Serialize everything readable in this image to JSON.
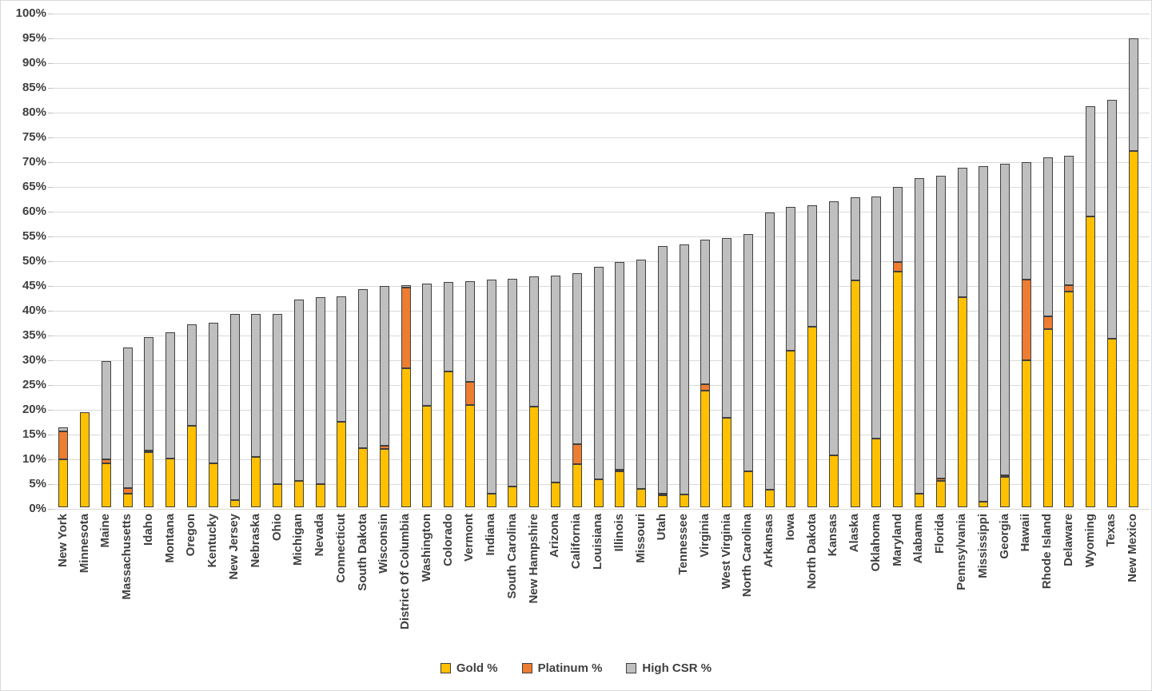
{
  "chart_data": {
    "type": "bar",
    "stacked": true,
    "title": "",
    "xlabel": "",
    "ylabel": "",
    "ylim": [
      0,
      100
    ],
    "ytick_step": 5,
    "yticks": [
      "0%",
      "5%",
      "10%",
      "15%",
      "20%",
      "25%",
      "30%",
      "35%",
      "40%",
      "45%",
      "50%",
      "55%",
      "60%",
      "65%",
      "70%",
      "75%",
      "80%",
      "85%",
      "90%",
      "95%",
      "100%"
    ],
    "grid": true,
    "legend_position": "bottom",
    "categories": [
      "New York",
      "Minnesota",
      "Maine",
      "Massachusetts",
      "Idaho",
      "Montana",
      "Oregon",
      "Kentucky",
      "New Jersey",
      "Nebraska",
      "Ohio",
      "Michigan",
      "Nevada",
      "Connecticut",
      "South Dakota",
      "Wisconsin",
      "District Of Columbia",
      "Washington",
      "Colorado",
      "Vermont",
      "Indiana",
      "South Carolina",
      "New Hampshire",
      "Arizona",
      "California",
      "Louisiana",
      "Illinois",
      "Missouri",
      "Utah",
      "Tennessee",
      "Virginia",
      "West Virginia",
      "North Carolina",
      "Arkansas",
      "Iowa",
      "North Dakota",
      "Kansas",
      "Alaska",
      "Oklahoma",
      "Maryland",
      "Alabama",
      "Florida",
      "Pennsylvania",
      "Mississippi",
      "Georgia",
      "Hawaii",
      "Rhode Island",
      "Delaware",
      "Wyoming",
      "Texas",
      "New Mexico"
    ],
    "series": [
      {
        "name": "Gold %",
        "color": "#FFC000",
        "values": [
          9.7,
          19.2,
          8.8,
          2.7,
          11.1,
          9.9,
          16.5,
          8.9,
          1.5,
          10.2,
          4.7,
          5.4,
          4.6,
          17.3,
          11.9,
          11.7,
          28.0,
          20.5,
          27.4,
          20.7,
          2.8,
          4.2,
          20.4,
          5.0,
          8.7,
          5.7,
          7.2,
          3.7,
          2.4,
          2.6,
          23.6,
          18.0,
          7.2,
          3.6,
          31.6,
          36.4,
          10.5,
          45.8,
          13.9,
          47.6,
          2.7,
          5.3,
          42.4,
          1.2,
          6.2,
          29.7,
          36.0,
          43.5,
          58.7,
          34.1,
          72.0
        ]
      },
      {
        "name": "Platinum %",
        "color": "#ED7D31",
        "values": [
          5.6,
          0,
          0.9,
          1.1,
          0.3,
          0,
          0,
          0,
          0,
          0,
          0,
          0,
          0,
          0,
          0,
          0.8,
          16.3,
          0,
          0,
          4.6,
          0,
          0,
          0,
          0,
          4.0,
          0,
          0.3,
          0,
          0.4,
          0,
          1.2,
          0,
          0,
          0,
          0,
          0,
          0,
          0,
          0,
          2.0,
          0,
          0.5,
          0,
          0,
          0.3,
          16.2,
          2.5,
          1.3,
          0,
          0,
          0
        ]
      },
      {
        "name": "High CSR %",
        "color": "#BFBFBF",
        "values": [
          0.9,
          0,
          19.9,
          28.5,
          23.0,
          25.4,
          20.4,
          28.3,
          37.5,
          28.8,
          34.4,
          36.5,
          37.9,
          25.3,
          32.2,
          32.2,
          0.6,
          24.6,
          18.1,
          20.4,
          43.1,
          41.9,
          26.2,
          41.7,
          34.6,
          42.9,
          42.0,
          46.3,
          49.9,
          50.4,
          29.2,
          36.3,
          47.9,
          55.9,
          29.0,
          24.5,
          51.2,
          16.8,
          48.9,
          15.1,
          63.7,
          61.2,
          26.2,
          67.6,
          62.8,
          23.8,
          32.1,
          26.2,
          22.3,
          48.2,
          22.7
        ]
      }
    ],
    "colors": {
      "gold": "#FFC000",
      "platinum": "#ED7D31",
      "high_csr": "#BFBFBF",
      "segment_border": "#404040",
      "gridline": "#D9D9D9",
      "axis_text": "#404040",
      "background": "#FFFFFF"
    }
  }
}
